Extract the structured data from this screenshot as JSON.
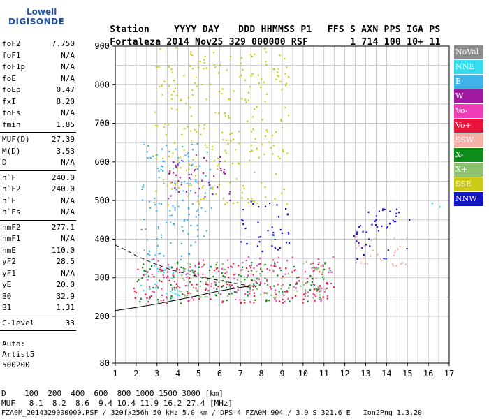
{
  "logo": {
    "line1": "Lowell",
    "line2": "DIGISONDE"
  },
  "header": {
    "labels": [
      "Station",
      "YYYY DAY",
      "DDD",
      "HHMMSS",
      "P1",
      "FFS",
      "S",
      "AXN",
      "PPS",
      "IGA",
      "PS"
    ],
    "values": [
      "Fortaleza",
      "2014 Nov25",
      "329",
      "000000",
      "RSF",
      "1",
      "714",
      "100",
      "10+",
      "11"
    ]
  },
  "params": [
    {
      "name": "foF2",
      "value": "7.750"
    },
    {
      "name": "foF1",
      "value": "N/A"
    },
    {
      "name": "foF1p",
      "value": "N/A"
    },
    {
      "name": "foE",
      "value": "N/A"
    },
    {
      "name": "foEp",
      "value": "0.47"
    },
    {
      "name": "fxI",
      "value": "8.20"
    },
    {
      "name": "foEs",
      "value": "N/A"
    },
    {
      "name": "fmin",
      "value": "1.85"
    },
    {
      "name": "MUF(D)",
      "value": "27.39"
    },
    {
      "name": "M(D)",
      "value": "3.53"
    },
    {
      "name": "D",
      "value": "N/A"
    },
    {
      "name": "h`F",
      "value": "240.0"
    },
    {
      "name": "h`F2",
      "value": "240.0"
    },
    {
      "name": "h`E",
      "value": "N/A"
    },
    {
      "name": "h`Es",
      "value": "N/A"
    },
    {
      "name": "hmF2",
      "value": "277.1"
    },
    {
      "name": "hmF1",
      "value": "N/A"
    },
    {
      "name": "hmE",
      "value": "110.0"
    },
    {
      "name": "yF2",
      "value": "28.5"
    },
    {
      "name": "yF1",
      "value": "N/A"
    },
    {
      "name": "yE",
      "value": "20.0"
    },
    {
      "name": "B0",
      "value": "32.9"
    },
    {
      "name": "B1",
      "value": "1.31"
    },
    {
      "name": "C-level",
      "value": "33"
    }
  ],
  "auto": {
    "line1": "Auto:",
    "line2": "Artist5",
    "line3": "500200"
  },
  "legend": [
    {
      "label": "NoVal",
      "color": "#8c8c8c"
    },
    {
      "label": "NNE",
      "color": "#33ddee"
    },
    {
      "label": "E",
      "color": "#3fb2ea"
    },
    {
      "label": "W",
      "color": "#a01aa0"
    },
    {
      "label": "Vo-",
      "color": "#ee3fb6"
    },
    {
      "label": "Vo+",
      "color": "#e8143c"
    },
    {
      "label": "SSW",
      "color": "#f5b0aa"
    },
    {
      "label": "X-",
      "color": "#0d8c1a"
    },
    {
      "label": "X+",
      "color": "#8cc26e"
    },
    {
      "label": "SSE",
      "color": "#cccc18"
    },
    {
      "label": "NNW",
      "color": "#1414c8"
    }
  ],
  "bottom": {
    "d_line": "D    100  200  400  600  800 1000 1500 3000 [km]",
    "muf_line": "MUF   8.1  8.2  8.6  9.4 10.4 11.9 16.2 27.4 [MHz]",
    "footer": "FZA0M_2014329000000.RSF / 320fx256h 50 kHz 5.0 km / DPS-4 FZA0M 904 / 3.9 S 321.6 E   Ion2Png 1.3.20"
  },
  "chart_data": {
    "type": "scatter",
    "title": "",
    "xlabel": "",
    "ylabel": "",
    "xlim": [
      1,
      17
    ],
    "ylim": [
      80,
      900
    ],
    "x_ticks": [
      "1",
      "2",
      "3",
      "4",
      "5",
      "6",
      "7",
      "8",
      "9",
      "10",
      "11",
      "12",
      "13",
      "14",
      "15",
      "16",
      "17"
    ],
    "y_ticks": [
      "80",
      "200",
      "300",
      "400",
      "500",
      "600",
      "700",
      "800",
      "900"
    ],
    "grid": true,
    "legend_position": "right",
    "traces": [
      {
        "name": "o-trace",
        "style": "dashed",
        "x": [
          1.0,
          1.5,
          2.0,
          2.5,
          3.0,
          3.5,
          4.0,
          5.0,
          6.0,
          7.0,
          7.75
        ],
        "y": [
          385,
          372,
          357,
          345,
          334,
          324,
          316,
          303,
          293,
          283,
          277
        ]
      },
      {
        "name": "x-trace",
        "style": "solid",
        "x": [
          1.0,
          2.0,
          3.0,
          4.0,
          5.0,
          6.0,
          7.0,
          7.7
        ],
        "y": [
          215,
          223,
          232,
          243,
          254,
          266,
          275,
          280
        ]
      }
    ],
    "echo_regions": [
      {
        "color_key": "NNE",
        "x_range": [
          1.9,
          4.5
        ],
        "y_range": [
          240,
          330
        ]
      },
      {
        "color_key": "E",
        "x_range": [
          2.2,
          5.6
        ],
        "y_range": [
          320,
          650
        ]
      },
      {
        "color_key": "Vo+",
        "x_range": [
          1.8,
          11.5
        ],
        "y_range": [
          235,
          340
        ]
      },
      {
        "color_key": "Vo-",
        "x_range": [
          2.5,
          11.5
        ],
        "y_range": [
          240,
          360
        ]
      },
      {
        "color_key": "X-",
        "x_range": [
          2.0,
          11.3
        ],
        "y_range": [
          235,
          345
        ]
      },
      {
        "color_key": "X+",
        "x_range": [
          4.0,
          11.3
        ],
        "y_range": [
          250,
          345
        ]
      },
      {
        "color_key": "NNW",
        "x_range": [
          6.8,
          9.3
        ],
        "y_range": [
          370,
          500
        ]
      },
      {
        "color_key": "SSE",
        "x_range": [
          2.8,
          9.3
        ],
        "y_range": [
          490,
          900
        ]
      },
      {
        "color_key": "W",
        "x_range": [
          3.5,
          6.5
        ],
        "y_range": [
          490,
          620
        ]
      },
      {
        "color_key": "SSW",
        "x_range": [
          12.2,
          15.0
        ],
        "y_range": [
          330,
          420
        ]
      },
      {
        "color_key": "NNW",
        "x_range": [
          12.4,
          15.1
        ],
        "y_range": [
          350,
          480
        ]
      },
      {
        "color_key": "NNE",
        "x_range": [
          16.1,
          17.0
        ],
        "y_range": [
          480,
          495
        ]
      }
    ]
  }
}
